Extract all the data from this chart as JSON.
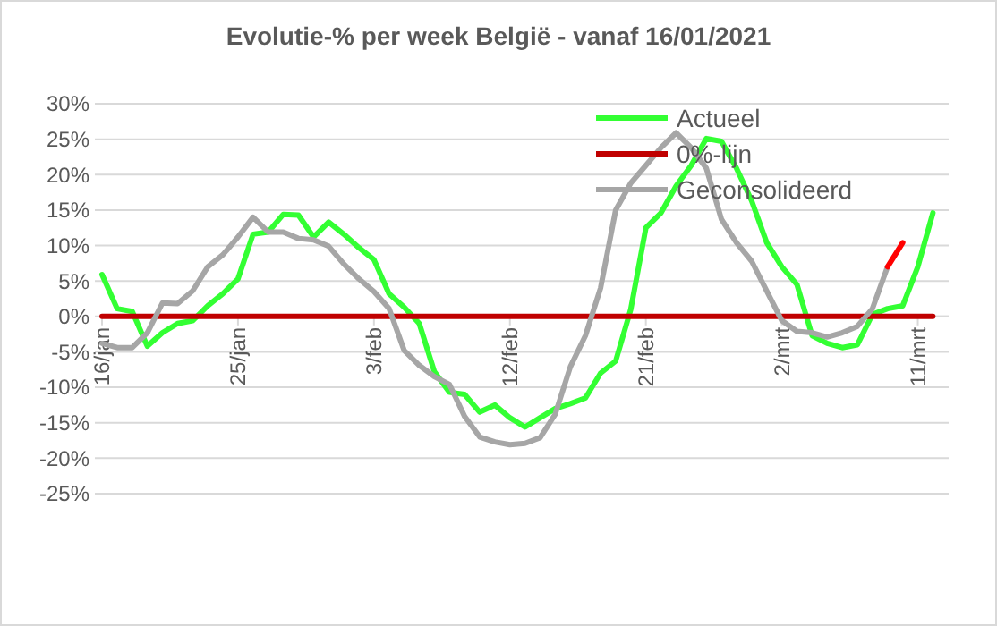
{
  "chart_data": {
    "type": "line",
    "title": "Evolutie-% per week België - vanaf 16/01/2021",
    "categories": [
      "16/jan",
      null,
      null,
      null,
      null,
      null,
      null,
      null,
      null,
      "25/jan",
      null,
      null,
      null,
      null,
      null,
      null,
      null,
      null,
      "3/feb",
      null,
      null,
      null,
      null,
      null,
      null,
      null,
      null,
      "12/feb",
      null,
      null,
      null,
      null,
      null,
      null,
      null,
      null,
      "21/feb",
      null,
      null,
      null,
      null,
      null,
      null,
      null,
      null,
      "2/mrt",
      null,
      null,
      null,
      null,
      null,
      null,
      null,
      null,
      "11/mrt",
      null
    ],
    "series": [
      {
        "name": "Actueel",
        "color": "#33ff33",
        "values": [
          5.9,
          1.1,
          0.7,
          -4.2,
          -2.3,
          -1.0,
          -0.6,
          1.5,
          3.2,
          5.3,
          11.6,
          11.9,
          14.4,
          14.3,
          11.2,
          13.3,
          11.6,
          9.7,
          8.0,
          3.2,
          1.3,
          -1.0,
          -7.8,
          -10.7,
          -11.0,
          -13.5,
          -12.5,
          -14.3,
          -15.6,
          -14.3,
          -13.0,
          -12.3,
          -11.5,
          -8.0,
          -6.3,
          1.0,
          12.5,
          14.6,
          18.4,
          21.3,
          25.1,
          24.7,
          20.9,
          16.3,
          10.4,
          7.0,
          4.5,
          -2.7,
          -3.8,
          -4.4,
          -4.0,
          0.3,
          1.1,
          1.5,
          7.0,
          14.6
        ]
      },
      {
        "name": "0%-lijn",
        "color": "#c00000",
        "values": [
          0,
          0,
          0,
          0,
          0,
          0,
          0,
          0,
          0,
          0,
          0,
          0,
          0,
          0,
          0,
          0,
          0,
          0,
          0,
          0,
          0,
          0,
          0,
          0,
          0,
          0,
          0,
          0,
          0,
          0,
          0,
          0,
          0,
          0,
          0,
          0,
          0,
          0,
          0,
          0,
          0,
          0,
          0,
          0,
          0,
          0,
          0,
          0,
          0,
          0,
          0,
          0,
          0,
          0,
          0,
          0
        ]
      },
      {
        "name": "Geconsolideerd",
        "color": "#a6a6a6",
        "values": [
          -3.8,
          -4.4,
          -4.4,
          -2.3,
          1.9,
          1.8,
          3.6,
          7.0,
          8.7,
          11.2,
          14.0,
          11.9,
          11.9,
          11.0,
          10.8,
          9.9,
          7.4,
          5.3,
          3.5,
          1.1,
          -4.8,
          -6.9,
          -8.5,
          -9.6,
          -14.1,
          -17.0,
          -17.7,
          -18.1,
          -17.9,
          -17.1,
          -13.8,
          -7.1,
          -2.7,
          4.0,
          15.0,
          18.8,
          21.3,
          23.8,
          25.9,
          23.8,
          20.9,
          13.7,
          10.4,
          7.8,
          3.6,
          -0.6,
          -2.1,
          -2.3,
          -2.9,
          -2.3,
          -1.4,
          1.1,
          7.0,
          null,
          null,
          null
        ]
      },
      {
        "color": "#ff0000",
        "values": [
          null,
          null,
          null,
          null,
          null,
          null,
          null,
          null,
          null,
          null,
          null,
          null,
          null,
          null,
          null,
          null,
          null,
          null,
          null,
          null,
          null,
          null,
          null,
          null,
          null,
          null,
          null,
          null,
          null,
          null,
          null,
          null,
          null,
          null,
          null,
          null,
          null,
          null,
          null,
          null,
          null,
          null,
          null,
          null,
          null,
          null,
          null,
          null,
          null,
          null,
          null,
          null,
          7.0,
          10.4,
          null,
          null
        ]
      }
    ],
    "ylim": [
      -25,
      30
    ],
    "yticks": [
      {
        "value": -25,
        "label": "-25%"
      },
      {
        "value": -20,
        "label": "-20%"
      },
      {
        "value": -15,
        "label": "-15%"
      },
      {
        "value": -10,
        "label": "-10%"
      },
      {
        "value": -5,
        "label": "-5%"
      },
      {
        "value": 0,
        "label": "0%"
      },
      {
        "value": 5,
        "label": "5%"
      },
      {
        "value": 10,
        "label": "10%"
      },
      {
        "value": 15,
        "label": "15%"
      },
      {
        "value": 20,
        "label": "20%"
      },
      {
        "value": 25,
        "label": "25%"
      },
      {
        "value": 30,
        "label": "30%"
      }
    ],
    "grid": "y",
    "legend": "top right",
    "marker": "none",
    "line_style": "solid"
  }
}
